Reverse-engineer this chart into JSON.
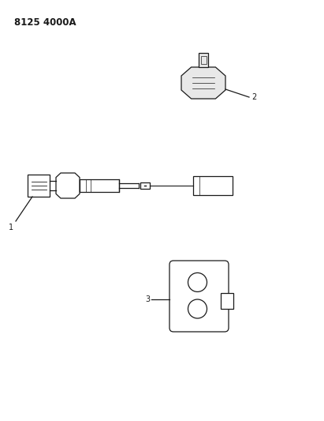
{
  "background_color": "#ffffff",
  "line_color": "#1a1a1a",
  "header_text": "8125 4000A",
  "header_fontsize": 8.5,
  "parts": [
    {
      "id": 1,
      "label": "1"
    },
    {
      "id": 2,
      "label": "2"
    },
    {
      "id": 3,
      "label": "3"
    }
  ],
  "figsize": [
    4.11,
    5.33
  ],
  "dpi": 100
}
